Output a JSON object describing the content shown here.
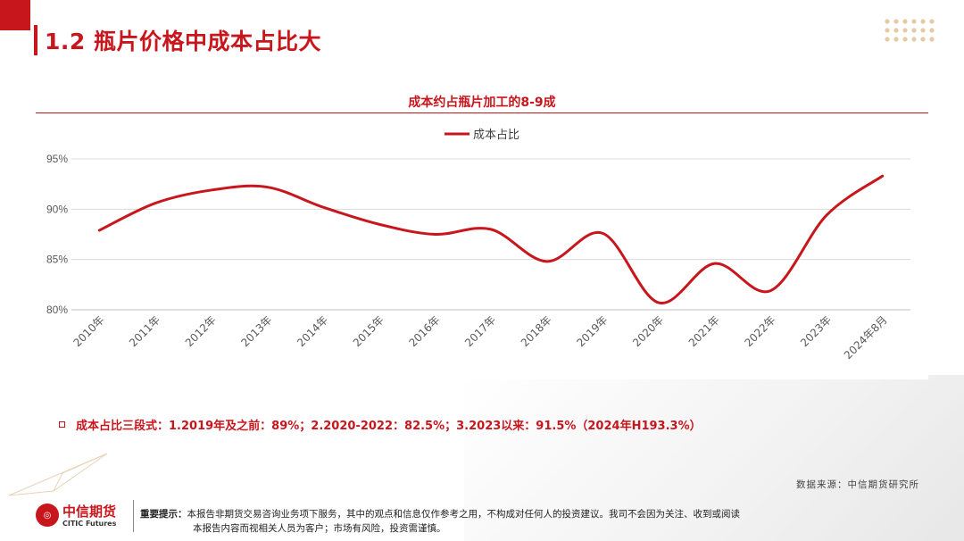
{
  "page": {
    "title": "1.2 瓶片价格中成本占比大",
    "summary": "成本占比三段式：1.2019年及之前：89%；2.2020-2022：82.5%；3.2023以来：91.5%（2024年H193.3%）",
    "source": "数据来源：中信期货研究所"
  },
  "footer": {
    "logo_cn": "中信期货",
    "logo_en": "CITIC Futures",
    "notice_label": "重要提示：",
    "notice_line1": "本报告非期货交易咨询业务项下服务，其中的观点和信息仅作参考之用，不构成对任何人的投资建议。我司不会因为关注、收到或阅读",
    "notice_line2": "本报告内容而视相关人员为客户；市场有风险，投资需谨慎。"
  },
  "chart_data": {
    "type": "line",
    "title": "成本约占瓶片加工的8-9成",
    "categories": [
      "2010年",
      "2011年",
      "2012年",
      "2013年",
      "2014年",
      "2015年",
      "2016年",
      "2017年",
      "2018年",
      "2019年",
      "2020年",
      "2021年",
      "2022年",
      "2023年",
      "2024年8月"
    ],
    "series": [
      {
        "name": "成本占比",
        "values": [
          87.9,
          90.6,
          91.9,
          92.2,
          90.2,
          88.5,
          87.5,
          88.0,
          84.8,
          87.6,
          80.7,
          84.6,
          81.9,
          89.4,
          93.3
        ]
      }
    ],
    "y_ticks": [
      "80%",
      "85%",
      "90%",
      "95%"
    ],
    "ylim": [
      80,
      95
    ],
    "legend_position": "top-center",
    "colors": {
      "line": "#c8161d",
      "grid": "#d9d9d9",
      "axis_text": "#595959",
      "accent": "#c8161d"
    }
  }
}
